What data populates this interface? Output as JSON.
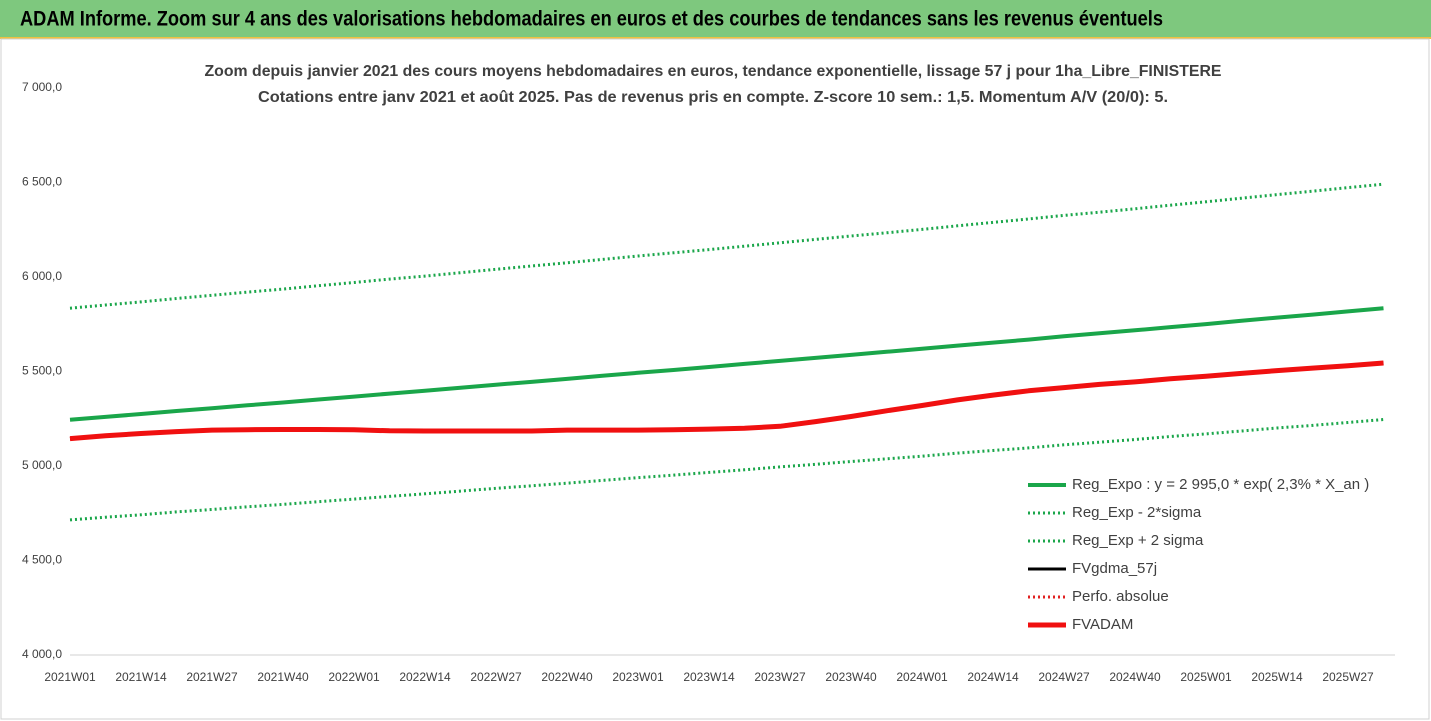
{
  "chart_data": {
    "type": "line",
    "banner": "ADAM Informe. Zoom sur 4 ans des valorisations hebdomadaires en euros et des courbes de tendances sans les revenus éventuels",
    "title": "Zoom depuis janvier 2021 des cours moyens hebdomadaires en euros, tendance exponentielle, lissage 57 j pour 1ha_Libre_FINISTERE",
    "subtitle": "Cotations entre janv 2021 et août 2025.  Pas de revenus pris en compte. Z-score 10 sem.: 1,5. Momentum A/V (20/0): 5.",
    "categories": [
      "2021W01",
      null,
      "2021W14",
      null,
      "2021W27",
      null,
      "2021W40",
      null,
      "2022W01",
      null,
      "2022W14",
      null,
      "2022W27",
      null,
      "2022W40",
      null,
      "2023W01",
      null,
      "2023W14",
      null,
      "2023W27",
      null,
      "2023W40",
      null,
      "2024W01",
      null,
      "2024W14",
      null,
      "2024W27",
      null,
      "2024W40",
      null,
      "2025W01",
      null,
      "2025W14",
      null,
      "2025W27",
      null
    ],
    "ylim": [
      4000,
      7000
    ],
    "yticks": [
      {
        "value": 4000,
        "label": "4 000,0"
      },
      {
        "value": 4500,
        "label": "4 500,0"
      },
      {
        "value": 5000,
        "label": "5 000,0"
      },
      {
        "value": 5500,
        "label": "5 500,0"
      },
      {
        "value": 6000,
        "label": "6 000,0"
      },
      {
        "value": 6500,
        "label": "6 500,0"
      },
      {
        "value": 7000,
        "label": "7 000,0"
      }
    ],
    "grid": false,
    "legend": "bottom-right",
    "series": [
      {
        "name": "Reg_Expo : y = 2 995,0 * exp( 2,3% *  X_an )",
        "color": "#1aa64a",
        "style": "solid",
        "values": [
          5245,
          5260,
          5275,
          5291,
          5306,
          5321,
          5336,
          5352,
          5367,
          5383,
          5398,
          5414,
          5430,
          5445,
          5461,
          5477,
          5493,
          5508,
          5524,
          5540,
          5556,
          5572,
          5588,
          5604,
          5620,
          5637,
          5653,
          5669,
          5686,
          5702,
          5718,
          5735,
          5751,
          5768,
          5785,
          5801,
          5818,
          5835
        ]
      },
      {
        "name": "Reg_Exp - 2*sigma",
        "color": "#1aa64a",
        "style": "dotted",
        "values": [
          4715,
          4729,
          4742,
          4757,
          4770,
          4784,
          4797,
          4811,
          4825,
          4839,
          4853,
          4867,
          4882,
          4895,
          4909,
          4924,
          4938,
          4952,
          4966,
          4980,
          4995,
          5009,
          5024,
          5038,
          5052,
          5068,
          5082,
          5096,
          5112,
          5126,
          5140,
          5156,
          5170,
          5185,
          5201,
          5215,
          5230,
          5246
        ]
      },
      {
        "name": "Reg_Exp + 2 sigma",
        "color": "#1aa64a",
        "style": "dotted",
        "values": [
          5835,
          5852,
          5868,
          5886,
          5903,
          5920,
          5936,
          5954,
          5971,
          5989,
          6005,
          6023,
          6041,
          6058,
          6075,
          6093,
          6111,
          6128,
          6145,
          6163,
          6181,
          6199,
          6217,
          6234,
          6252,
          6271,
          6289,
          6307,
          6326,
          6343,
          6361,
          6380,
          6398,
          6417,
          6436,
          6454,
          6473,
          6491
        ]
      },
      {
        "name": "FVgdma_57j",
        "color": "#000000",
        "style": "medium",
        "values": [
          5145,
          5160,
          5172,
          5182,
          5190,
          5192,
          5193,
          5193,
          5192,
          5186,
          5185,
          5185,
          5185,
          5185,
          5190,
          5190,
          5190,
          5192,
          5195,
          5200,
          5214,
          5238,
          5264,
          5292,
          5320,
          5350,
          5375,
          5398,
          5415,
          5432,
          5445,
          5462,
          5475,
          5490,
          5505,
          5518,
          5530,
          5545
        ]
      },
      {
        "name": "Perfo. absolue",
        "color": "#e02020",
        "style": "dotted",
        "values": [
          5145,
          5160,
          5172,
          5182,
          5190,
          5192,
          5193,
          5193,
          5192,
          5186,
          5185,
          5185,
          5185,
          5185,
          5190,
          5190,
          5190,
          5192,
          5195,
          5200,
          5210,
          5235,
          5262,
          5292,
          5320,
          5350,
          5375,
          5398,
          5415,
          5432,
          5445,
          5462,
          5475,
          5490,
          5505,
          5518,
          5530,
          5545
        ]
      },
      {
        "name": "FVADAM",
        "color": "#f01010",
        "style": "bold",
        "values": [
          5145,
          5160,
          5172,
          5182,
          5190,
          5192,
          5193,
          5193,
          5192,
          5186,
          5185,
          5185,
          5185,
          5185,
          5190,
          5190,
          5190,
          5192,
          5195,
          5200,
          5210,
          5235,
          5262,
          5292,
          5320,
          5350,
          5375,
          5398,
          5415,
          5432,
          5445,
          5462,
          5475,
          5490,
          5505,
          5518,
          5530,
          5545
        ]
      }
    ]
  }
}
